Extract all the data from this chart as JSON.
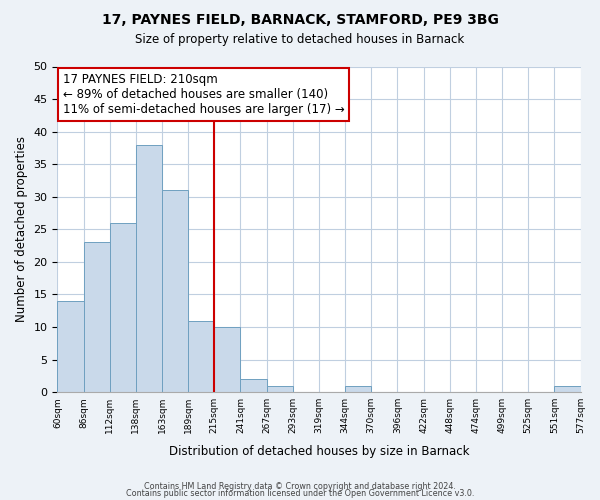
{
  "title1": "17, PAYNES FIELD, BARNACK, STAMFORD, PE9 3BG",
  "title2": "Size of property relative to detached houses in Barnack",
  "xlabel": "Distribution of detached houses by size in Barnack",
  "ylabel": "Number of detached properties",
  "bin_labels": [
    "60sqm",
    "86sqm",
    "112sqm",
    "138sqm",
    "163sqm",
    "189sqm",
    "215sqm",
    "241sqm",
    "267sqm",
    "293sqm",
    "319sqm",
    "344sqm",
    "370sqm",
    "396sqm",
    "422sqm",
    "448sqm",
    "474sqm",
    "499sqm",
    "525sqm",
    "551sqm",
    "577sqm"
  ],
  "bar_heights": [
    14,
    23,
    26,
    38,
    31,
    11,
    10,
    2,
    1,
    0,
    0,
    1,
    0,
    0,
    0,
    0,
    0,
    0,
    0,
    1
  ],
  "bar_color": "#c9d9ea",
  "bar_edge_color": "#6fa0c0",
  "grid_color": "#c0cfe0",
  "vline_x": 6,
  "vline_color": "#cc0000",
  "annotation_line1": "17 PAYNES FIELD: 210sqm",
  "annotation_line2": "← 89% of detached houses are smaller (140)",
  "annotation_line3": "11% of semi-detached houses are larger (17) →",
  "annotation_box_edgecolor": "#cc0000",
  "annotation_fontsize": 8.5,
  "ylim": [
    0,
    50
  ],
  "yticks": [
    0,
    5,
    10,
    15,
    20,
    25,
    30,
    35,
    40,
    45,
    50
  ],
  "footer1": "Contains HM Land Registry data © Crown copyright and database right 2024.",
  "footer2": "Contains public sector information licensed under the Open Government Licence v3.0.",
  "bg_color": "#edf2f7",
  "plot_bg_color": "#ffffff"
}
